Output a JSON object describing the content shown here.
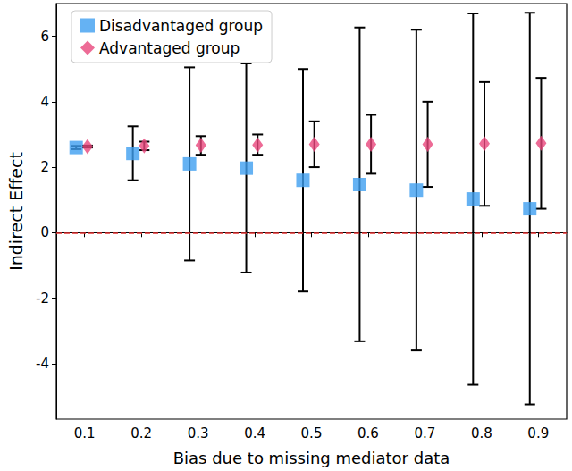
{
  "chart_data": {
    "type": "scatter",
    "x_label": "Bias due to missing mediator data",
    "y_label": "Indirect Effect",
    "xlim": [
      0.05,
      0.95
    ],
    "xticks": [
      0.1,
      0.2,
      0.3,
      0.4,
      0.5,
      0.6,
      0.7,
      0.8,
      0.9
    ],
    "ylim": [
      -5.7,
      7.0
    ],
    "yticks": [
      -4,
      -2,
      0,
      2,
      4,
      6
    ],
    "grid": false,
    "legend": "top-left",
    "hline": 0,
    "series": [
      {
        "name": "Disadvantaged group",
        "color": "#3f9ff0",
        "marker": "square",
        "x": [
          0.085,
          0.185,
          0.285,
          0.385,
          0.485,
          0.585,
          0.685,
          0.785,
          0.885
        ],
        "values": [
          2.6,
          2.42,
          2.1,
          1.97,
          1.6,
          1.47,
          1.3,
          1.03,
          0.73
        ],
        "error_low": [
          2.55,
          1.6,
          -0.85,
          -1.22,
          -1.8,
          -3.32,
          -3.6,
          -4.65,
          -5.25
        ],
        "error_high": [
          2.65,
          3.25,
          5.05,
          5.17,
          5.0,
          6.27,
          6.2,
          6.7,
          6.72
        ]
      },
      {
        "name": "Advantaged group",
        "color": "#e8467c",
        "marker": "diamond",
        "x": [
          0.105,
          0.205,
          0.305,
          0.405,
          0.505,
          0.605,
          0.705,
          0.805,
          0.905
        ],
        "values": [
          2.63,
          2.65,
          2.67,
          2.68,
          2.7,
          2.7,
          2.7,
          2.72,
          2.73
        ],
        "error_low": [
          2.6,
          2.52,
          2.38,
          2.38,
          2.0,
          1.8,
          1.4,
          0.82,
          0.73
        ],
        "error_high": [
          2.66,
          2.78,
          2.95,
          3.0,
          3.4,
          3.6,
          4.0,
          4.6,
          4.73
        ]
      }
    ]
  }
}
